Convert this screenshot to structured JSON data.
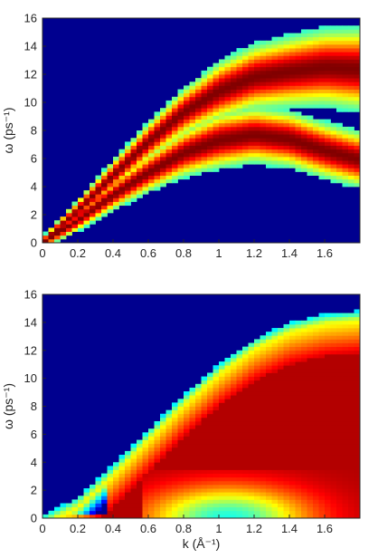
{
  "chart_data": [
    {
      "type": "heatmap",
      "panel": "top",
      "xlim": [
        0,
        1.8
      ],
      "ylim": [
        0,
        16
      ],
      "xticks": [
        "0",
        "0.2",
        "0.4",
        "0.6",
        "0.8",
        "1",
        "1.2",
        "1.4",
        "1.6"
      ],
      "yticks": [
        "0",
        "2",
        "4",
        "6",
        "8",
        "10",
        "12",
        "14",
        "16"
      ],
      "xlabel": "",
      "ylabel": "ω (ps⁻¹)",
      "colormap": "jet",
      "background": "#00008f",
      "grid": false,
      "branches": [
        {
          "k": [
            0.0,
            0.2,
            0.4,
            0.6,
            0.8,
            1.0,
            1.2,
            1.4,
            1.6,
            1.78
          ],
          "omega_center": [
            0.0,
            1.6,
            3.4,
            5.0,
            6.4,
            7.3,
            7.7,
            7.4,
            6.6,
            6.0
          ]
        },
        {
          "k": [
            0.0,
            0.2,
            0.4,
            0.6,
            0.8,
            1.0,
            1.2,
            1.4,
            1.6,
            1.78
          ],
          "omega_center": [
            0.0,
            2.3,
            4.8,
            7.2,
            9.3,
            10.8,
            11.8,
            12.2,
            12.5,
            12.4
          ]
        }
      ]
    },
    {
      "type": "heatmap",
      "panel": "bottom",
      "xlim": [
        0,
        1.8
      ],
      "ylim": [
        0,
        16
      ],
      "xticks": [
        "0",
        "0.2",
        "0.4",
        "0.6",
        "0.8",
        "1",
        "1.2",
        "1.4",
        "1.6"
      ],
      "yticks": [
        "0",
        "2",
        "4",
        "6",
        "8",
        "10",
        "12",
        "14",
        "16"
      ],
      "xlabel": "k (Å⁻¹)",
      "ylabel": "ω (ps⁻¹)",
      "colormap": "jet",
      "background": "#00008f",
      "grid": false,
      "upper_edge": {
        "k": [
          0.0,
          0.2,
          0.4,
          0.6,
          0.8,
          1.0,
          1.2,
          1.4,
          1.6,
          1.78
        ],
        "omega": [
          0.2,
          1.5,
          3.8,
          6.3,
          8.8,
          11.0,
          12.8,
          14.0,
          14.6,
          14.8
        ]
      },
      "low_omega_feature": {
        "k": [
          0.7,
          1.4
        ],
        "omega": [
          0,
          3
        ],
        "color": "cyan"
      }
    }
  ]
}
